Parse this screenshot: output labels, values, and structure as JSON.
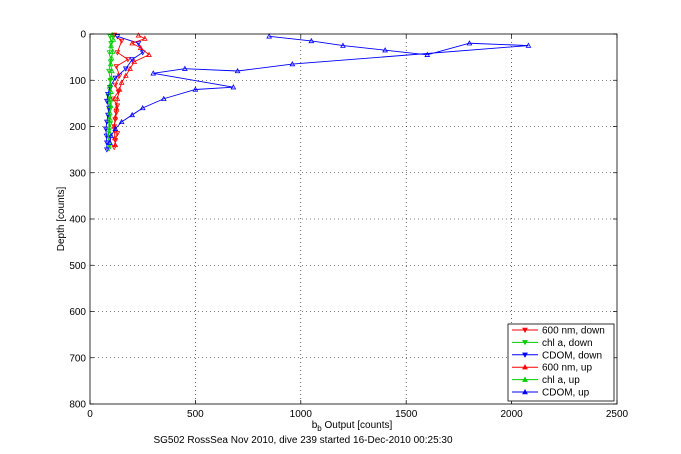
{
  "chart_data": {
    "type": "scatter",
    "xlabel_main": "b",
    "xlabel_sub": "b",
    "xlabel_rest": " Output [counts]",
    "ylabel": "Depth [counts]",
    "caption": "SG502 RossSea Nov 2010, dive 239 started 16-Dec-2010 00:25:30",
    "xlim": [
      0,
      2500
    ],
    "ylim": [
      0,
      800
    ],
    "y_reversed": true,
    "grid": true,
    "legend_position": "bottom-right",
    "x_ticks": [
      "0",
      "500",
      "1000",
      "1500",
      "2000",
      "2500"
    ],
    "y_ticks": [
      "0",
      "100",
      "200",
      "300",
      "400",
      "500",
      "600",
      "700",
      "800"
    ],
    "series": [
      {
        "name": "600 nm, down",
        "color": "#ff0000",
        "marker": "triangle-down",
        "x": [
          115,
          150,
          130,
          180,
          125,
          140,
          120,
          135,
          110,
          130,
          125,
          120,
          115,
          130,
          120,
          115
        ],
        "y": [
          2,
          15,
          40,
          55,
          70,
          90,
          110,
          125,
          140,
          155,
          170,
          185,
          200,
          215,
          230,
          245
        ]
      },
      {
        "name": "chl a, down",
        "color": "#00cc00",
        "marker": "triangle-down",
        "x": [
          95,
          100,
          92,
          98,
          90,
          96,
          93,
          88,
          95,
          92,
          90,
          94,
          88,
          90,
          92,
          90
        ],
        "y": [
          5,
          20,
          40,
          60,
          80,
          100,
          120,
          135,
          150,
          165,
          180,
          195,
          210,
          225,
          240,
          248
        ]
      },
      {
        "name": "CDOM, down",
        "color": "#0000ff",
        "marker": "triangle-down",
        "x": [
          130,
          230,
          250,
          200,
          170,
          120,
          95,
          85,
          80,
          90,
          85,
          80,
          75,
          78,
          80,
          80
        ],
        "y": [
          5,
          20,
          40,
          55,
          75,
          95,
          115,
          130,
          145,
          160,
          175,
          190,
          205,
          220,
          235,
          250
        ]
      },
      {
        "name": "600 nm, up",
        "color": "#ff0000",
        "marker": "triangle-up",
        "x": [
          230,
          260,
          200,
          240,
          280,
          210,
          190,
          170,
          150,
          140,
          130,
          125,
          120,
          115,
          118,
          120
        ],
        "y": [
          3,
          10,
          20,
          30,
          45,
          60,
          75,
          90,
          105,
          120,
          140,
          160,
          180,
          200,
          225,
          240
        ]
      },
      {
        "name": "chl a, up",
        "color": "#00cc00",
        "marker": "triangle-up",
        "x": [
          105,
          110,
          100,
          108,
          102,
          98,
          104,
          100,
          96,
          100,
          95,
          98,
          94,
          96,
          92,
          95
        ],
        "y": [
          2,
          12,
          25,
          38,
          52,
          65,
          80,
          95,
          110,
          125,
          140,
          155,
          170,
          185,
          200,
          215
        ]
      },
      {
        "name": "CDOM, up",
        "color": "#0000ff",
        "marker": "triangle-up",
        "x": [
          850,
          1050,
          1200,
          1400,
          1600,
          1800,
          2080,
          960,
          700,
          450,
          300,
          680,
          500,
          350,
          250,
          200,
          150,
          120,
          100,
          95
        ],
        "y": [
          5,
          15,
          25,
          35,
          45,
          20,
          25,
          65,
          80,
          75,
          85,
          115,
          120,
          140,
          160,
          175,
          190,
          205,
          220,
          235
        ]
      }
    ]
  }
}
